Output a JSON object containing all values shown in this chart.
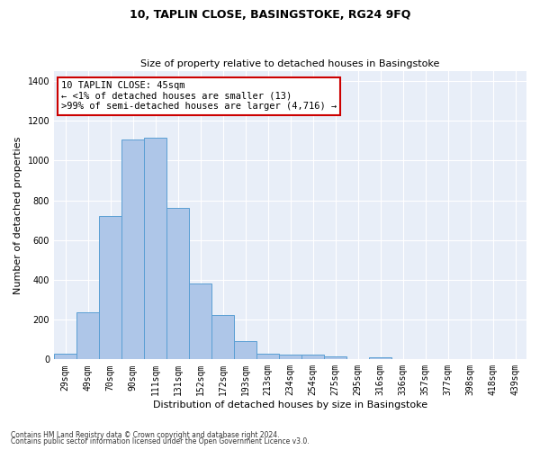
{
  "title": "10, TAPLIN CLOSE, BASINGSTOKE, RG24 9FQ",
  "subtitle": "Size of property relative to detached houses in Basingstoke",
  "xlabel": "Distribution of detached houses by size in Basingstoke",
  "ylabel": "Number of detached properties",
  "footnote1": "Contains HM Land Registry data © Crown copyright and database right 2024.",
  "footnote2": "Contains public sector information licensed under the Open Government Licence v3.0.",
  "bar_labels": [
    "29sqm",
    "49sqm",
    "70sqm",
    "90sqm",
    "111sqm",
    "131sqm",
    "152sqm",
    "172sqm",
    "193sqm",
    "213sqm",
    "234sqm",
    "254sqm",
    "275sqm",
    "295sqm",
    "316sqm",
    "336sqm",
    "357sqm",
    "377sqm",
    "398sqm",
    "418sqm",
    "439sqm"
  ],
  "bar_values": [
    30,
    235,
    720,
    1105,
    1115,
    760,
    380,
    225,
    90,
    30,
    25,
    22,
    15,
    0,
    12,
    0,
    0,
    0,
    0,
    0,
    0
  ],
  "bar_color": "#aec6e8",
  "bar_edge_color": "#5a9fd4",
  "annotation_text": "10 TAPLIN CLOSE: 45sqm\n← <1% of detached houses are smaller (13)\n>99% of semi-detached houses are larger (4,716) →",
  "annotation_box_color": "#ffffff",
  "annotation_box_edge_color": "#cc0000",
  "ylim": [
    0,
    1450
  ],
  "yticks": [
    0,
    200,
    400,
    600,
    800,
    1000,
    1200,
    1400
  ],
  "bg_color": "#e8eef8",
  "title_fontsize": 9,
  "subtitle_fontsize": 8,
  "xlabel_fontsize": 8,
  "ylabel_fontsize": 8,
  "tick_fontsize": 7,
  "annotation_fontsize": 7.5
}
